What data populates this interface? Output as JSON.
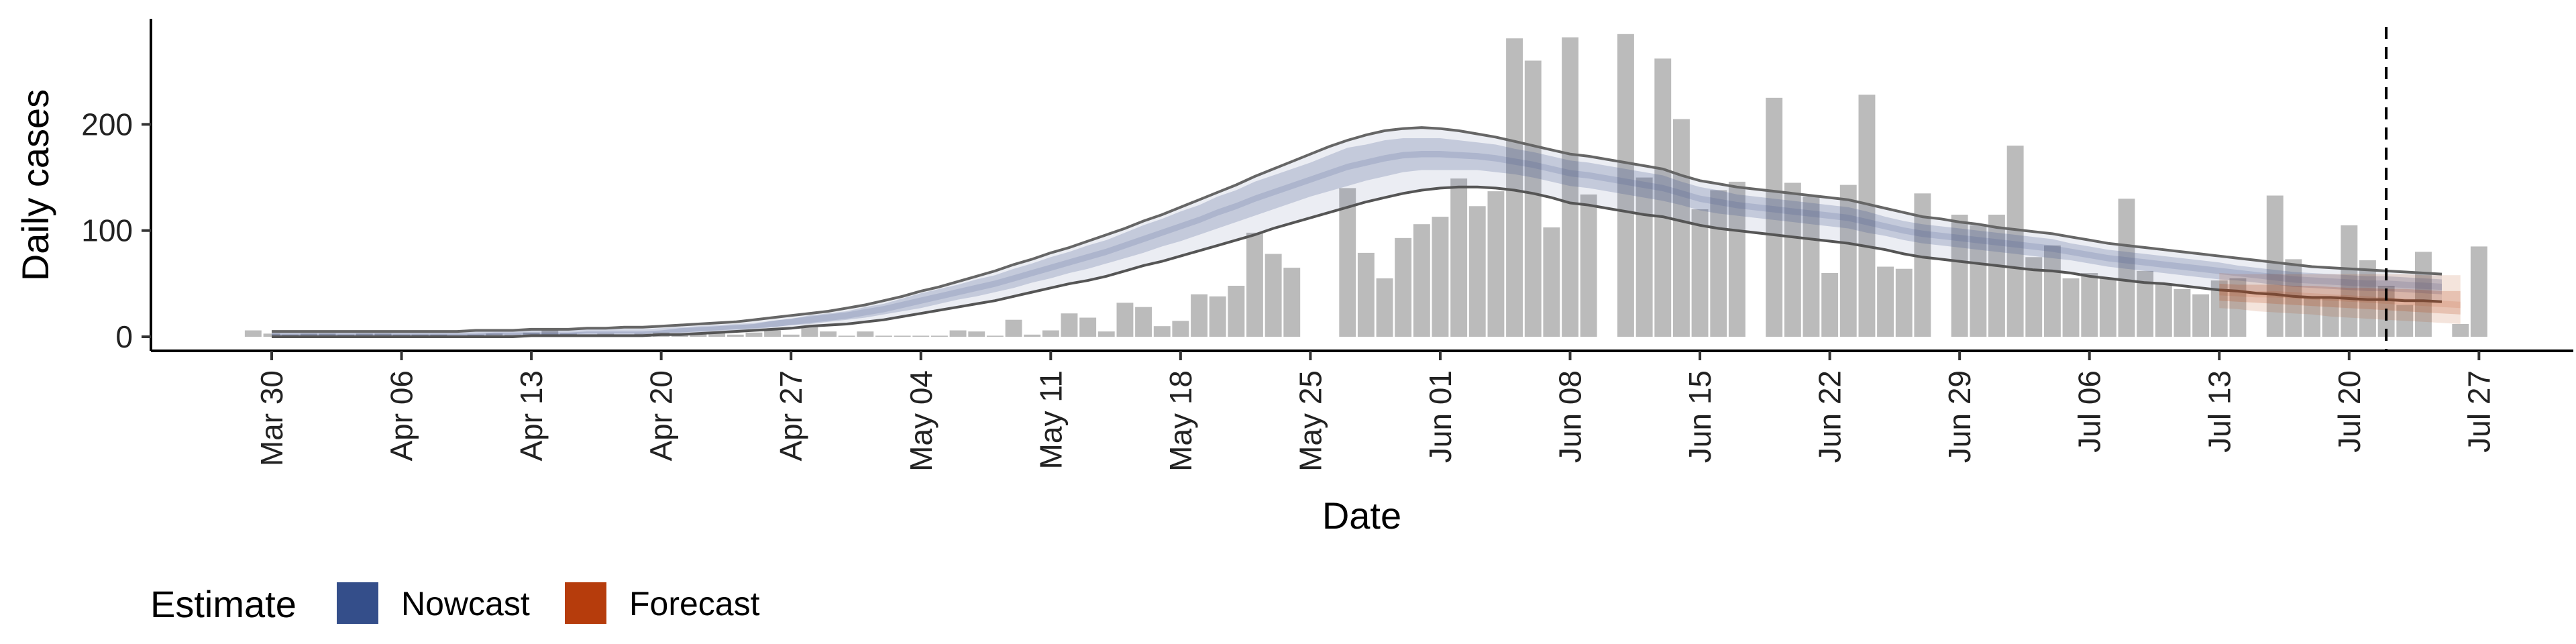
{
  "chart_data": {
    "type": "bar",
    "xlabel": "Date",
    "ylabel": "Daily cases",
    "x_ticks": [
      "Mar 30",
      "Apr 06",
      "Apr 13",
      "Apr 20",
      "Apr 27",
      "May 04",
      "May 11",
      "May 18",
      "May 25",
      "Jun 01",
      "Jun 08",
      "Jun 15",
      "Jun 22",
      "Jun 29",
      "Jul 06",
      "Jul 13",
      "Jul 20",
      "Jul 27"
    ],
    "y_ticks": [
      0,
      100,
      200
    ],
    "ylim": [
      -12,
      298
    ],
    "xlim_days_from_mar30": [
      -6.5,
      125.5
    ],
    "grid": false,
    "reported_cases": {
      "start_date": "Mar 29",
      "values": [
        6,
        3,
        2,
        3,
        3,
        2,
        3,
        3,
        2,
        2,
        2,
        1,
        2,
        3,
        2,
        4,
        6,
        3,
        2,
        3,
        2,
        3,
        4,
        2,
        3,
        4,
        2,
        4,
        6,
        2,
        10,
        5,
        1,
        5,
        1,
        1,
        1,
        1,
        6,
        5,
        1,
        16,
        2,
        6,
        22,
        18,
        5,
        32,
        28,
        10,
        15,
        40,
        38,
        48,
        98,
        78,
        65,
        0,
        0,
        140,
        79,
        55,
        93,
        106,
        113,
        149,
        123,
        137,
        281,
        260,
        103,
        282,
        134,
        0,
        285,
        150,
        262,
        205,
        120,
        138,
        146,
        0,
        225,
        145,
        132,
        60,
        143,
        228,
        66,
        64,
        135,
        0,
        115,
        105,
        115,
        180,
        75,
        86,
        55,
        60,
        55,
        130,
        62,
        50,
        45,
        40,
        53,
        55,
        0,
        133,
        73,
        38,
        38,
        105,
        72,
        48,
        30,
        80,
        0,
        12,
        85
      ],
      "color": "#bbbbbb"
    },
    "series": [
      {
        "name": "Nowcast",
        "color": "#3b4d8a",
        "start_date": "Mar 30",
        "x_step_days": 1,
        "median": [
          2,
          2,
          2,
          2,
          2,
          2,
          2,
          2,
          2,
          2,
          2,
          2,
          3,
          3,
          3,
          3,
          3,
          4,
          4,
          4,
          4,
          5,
          6,
          7,
          8,
          9,
          10,
          12,
          14,
          16,
          18,
          20,
          23,
          26,
          30,
          34,
          38,
          42,
          46,
          50,
          55,
          60,
          65,
          70,
          75,
          80,
          86,
          92,
          98,
          104,
          110,
          117,
          123,
          130,
          136,
          142,
          148,
          154,
          160,
          164,
          168,
          171,
          172,
          172,
          171,
          170,
          168,
          165,
          162,
          158,
          154,
          152,
          149,
          146,
          143,
          140,
          135,
          130,
          127,
          124,
          122,
          120,
          118,
          116,
          114,
          112,
          108,
          104,
          100,
          97,
          95,
          93,
          91,
          89,
          87,
          85,
          83,
          80,
          77,
          74,
          72,
          70,
          68,
          66,
          64,
          62,
          60,
          58,
          56,
          54,
          53,
          52,
          51,
          50,
          50,
          49,
          48,
          47
        ],
        "inner_lo": [
          1,
          1,
          1,
          1,
          1,
          1,
          1,
          1,
          1,
          1,
          1,
          1,
          2,
          2,
          2,
          2,
          2,
          3,
          3,
          3,
          3,
          4,
          4,
          5,
          6,
          7,
          8,
          9,
          11,
          12,
          14,
          16,
          18,
          21,
          24,
          27,
          31,
          35,
          38,
          42,
          46,
          51,
          55,
          60,
          64,
          69,
          74,
          79,
          85,
          90,
          96,
          102,
          108,
          114,
          120,
          126,
          132,
          137,
          142,
          147,
          151,
          155,
          157,
          157,
          157,
          157,
          155,
          153,
          150,
          146,
          142,
          140,
          137,
          134,
          131,
          128,
          124,
          119,
          116,
          114,
          112,
          110,
          108,
          106,
          104,
          102,
          98,
          95,
          91,
          88,
          86,
          84,
          82,
          80,
          78,
          76,
          74,
          72,
          69,
          66,
          64,
          62,
          60,
          58,
          56,
          54,
          53,
          51,
          49,
          47,
          46,
          45,
          44,
          43,
          43,
          42,
          41,
          40
        ],
        "inner_hi": [
          3,
          3,
          3,
          3,
          3,
          3,
          3,
          3,
          3,
          3,
          3,
          3,
          4,
          4,
          4,
          4,
          4,
          5,
          5,
          5,
          5,
          6,
          8,
          9,
          10,
          11,
          12,
          15,
          17,
          20,
          22,
          24,
          28,
          31,
          36,
          41,
          45,
          49,
          54,
          58,
          64,
          69,
          75,
          80,
          86,
          91,
          98,
          105,
          111,
          118,
          124,
          132,
          138,
          146,
          152,
          158,
          164,
          171,
          178,
          181,
          185,
          187,
          187,
          187,
          185,
          183,
          181,
          177,
          174,
          170,
          166,
          164,
          161,
          158,
          155,
          152,
          146,
          141,
          138,
          134,
          132,
          130,
          128,
          126,
          124,
          122,
          118,
          113,
          109,
          106,
          104,
          102,
          100,
          98,
          96,
          94,
          92,
          88,
          85,
          82,
          80,
          78,
          76,
          74,
          72,
          70,
          67,
          65,
          63,
          61,
          60,
          59,
          58,
          57,
          57,
          56,
          55,
          54
        ],
        "outer_lo": [
          0,
          0,
          0,
          0,
          0,
          0,
          0,
          0,
          0,
          0,
          0,
          0,
          0,
          0,
          1,
          1,
          1,
          1,
          1,
          1,
          1,
          2,
          2,
          3,
          4,
          5,
          6,
          7,
          8,
          10,
          11,
          12,
          14,
          16,
          19,
          22,
          25,
          28,
          31,
          34,
          38,
          42,
          46,
          50,
          53,
          57,
          62,
          67,
          71,
          76,
          81,
          86,
          91,
          96,
          102,
          107,
          112,
          117,
          122,
          127,
          131,
          135,
          138,
          140,
          141,
          141,
          140,
          138,
          135,
          131,
          126,
          124,
          121,
          118,
          115,
          113,
          109,
          105,
          102,
          100,
          98,
          96,
          94,
          92,
          90,
          88,
          85,
          82,
          78,
          75,
          73,
          71,
          69,
          67,
          65,
          63,
          62,
          60,
          57,
          55,
          53,
          51,
          50,
          48,
          46,
          44,
          43,
          41,
          40,
          38,
          37,
          37,
          36,
          35,
          35,
          34,
          34,
          33
        ],
        "outer_hi": [
          5,
          5,
          5,
          5,
          5,
          5,
          5,
          5,
          5,
          5,
          5,
          6,
          6,
          6,
          7,
          7,
          7,
          8,
          8,
          9,
          9,
          10,
          11,
          12,
          13,
          14,
          16,
          18,
          20,
          22,
          24,
          27,
          30,
          34,
          38,
          43,
          47,
          52,
          57,
          62,
          68,
          73,
          79,
          84,
          90,
          96,
          102,
          109,
          115,
          122,
          129,
          136,
          143,
          151,
          158,
          165,
          172,
          179,
          185,
          190,
          194,
          196,
          197,
          196,
          194,
          191,
          188,
          184,
          180,
          176,
          172,
          170,
          167,
          164,
          161,
          158,
          152,
          147,
          144,
          141,
          139,
          137,
          135,
          133,
          131,
          129,
          125,
          121,
          117,
          113,
          111,
          108,
          106,
          103,
          101,
          99,
          97,
          94,
          91,
          88,
          86,
          84,
          82,
          80,
          78,
          76,
          74,
          72,
          70,
          68,
          66,
          65,
          64,
          63,
          62,
          61,
          60,
          59
        ]
      },
      {
        "name": "Forecast",
        "color": "#b33d0a",
        "start_date": "Jul 13",
        "x_step_days": 1,
        "median": [
          42,
          41,
          40,
          40,
          39,
          38,
          37,
          36,
          35,
          34,
          33,
          32,
          31,
          30
        ],
        "inner_lo": [
          34,
          33,
          32,
          31,
          30,
          29,
          28,
          27,
          26,
          25,
          24,
          23,
          22,
          21
        ],
        "inner_hi": [
          50,
          49,
          49,
          49,
          48,
          48,
          47,
          46,
          46,
          45,
          45,
          44,
          43,
          43
        ],
        "outer_lo": [
          27,
          26,
          24,
          23,
          22,
          21,
          19,
          18,
          17,
          16,
          15,
          14,
          13,
          12
        ],
        "outer_hi": [
          60,
          59,
          59,
          59,
          59,
          59,
          59,
          59,
          59,
          59,
          59,
          58,
          58,
          58
        ]
      }
    ],
    "vline": {
      "date": "Jul 22",
      "style": "dashed"
    },
    "legend": {
      "title": "Estimate",
      "position": "bottom-left",
      "entries": [
        {
          "label": "Nowcast",
          "color": "#344e8a"
        },
        {
          "label": "Forecast",
          "color": "#b63c0c"
        }
      ]
    }
  }
}
